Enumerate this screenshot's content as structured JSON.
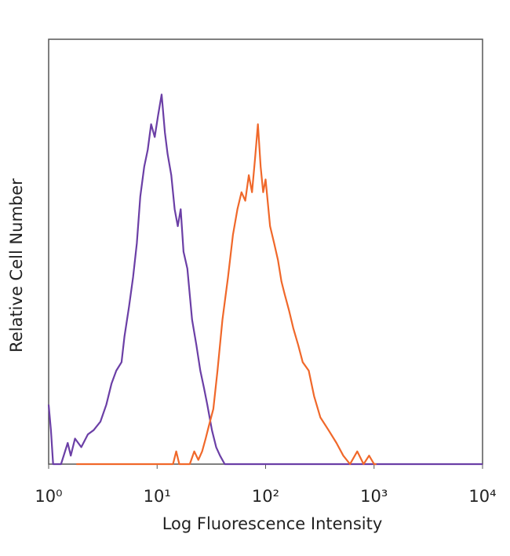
{
  "chart_data": {
    "type": "line",
    "x_label": "Log Fluorescence Intensity",
    "y_label": "Relative Cell Number",
    "xlog": true,
    "xlim": [
      1,
      10000
    ],
    "xticks": [
      {
        "value": 1,
        "label": "10⁰"
      },
      {
        "value": 10,
        "label": "10¹"
      },
      {
        "value": 100,
        "label": "10²"
      },
      {
        "value": 1000,
        "label": "10³"
      },
      {
        "value": 10000,
        "label": "10⁴"
      }
    ],
    "ylim": [
      0,
      100
    ],
    "series": [
      {
        "color": "#6b3fa6",
        "x": [
          1.0,
          1.05,
          1.1,
          1.3,
          1.5,
          1.6,
          1.75,
          2.0,
          2.3,
          2.6,
          3.0,
          3.4,
          3.8,
          4.2,
          4.7,
          5.0,
          5.5,
          6.0,
          6.5,
          7.0,
          7.6,
          8.2,
          8.8,
          9.5,
          10.2,
          11.0,
          11.8,
          12.5,
          13.5,
          14.5,
          15.5,
          16.5,
          17.5,
          19,
          21,
          23,
          25,
          27,
          29,
          32,
          35,
          38,
          42,
          100,
          1000,
          10000
        ],
        "values": [
          14,
          8,
          0,
          0,
          5,
          2,
          6,
          4,
          7,
          8,
          10,
          14,
          19,
          22,
          24,
          30,
          37,
          44,
          52,
          63,
          70,
          74,
          80,
          77,
          82,
          87,
          78,
          73,
          68,
          60,
          56,
          60,
          50,
          46,
          34,
          28,
          22,
          18,
          14,
          8,
          4,
          2,
          0,
          0,
          0,
          0
        ]
      },
      {
        "color": "#f0682a",
        "x": [
          1.8,
          10,
          14,
          15,
          16,
          20,
          22,
          24,
          26,
          28,
          30,
          33,
          36,
          40,
          45,
          50,
          55,
          60,
          65,
          70,
          75,
          80,
          85,
          90,
          95,
          100,
          110,
          120,
          130,
          140,
          150,
          165,
          180,
          200,
          220,
          250,
          280,
          320,
          380,
          450,
          520,
          600,
          700,
          800,
          900,
          1000,
          1050
        ],
        "values": [
          0,
          0,
          0,
          3,
          0,
          0,
          3,
          1,
          3,
          6,
          9,
          13,
          22,
          34,
          44,
          54,
          60,
          64,
          62,
          68,
          64,
          72,
          80,
          70,
          64,
          67,
          56,
          52,
          48,
          43,
          40,
          36,
          32,
          28,
          24,
          22,
          16,
          11,
          8,
          5,
          2,
          0,
          3,
          0,
          2,
          0,
          0
        ]
      }
    ]
  }
}
